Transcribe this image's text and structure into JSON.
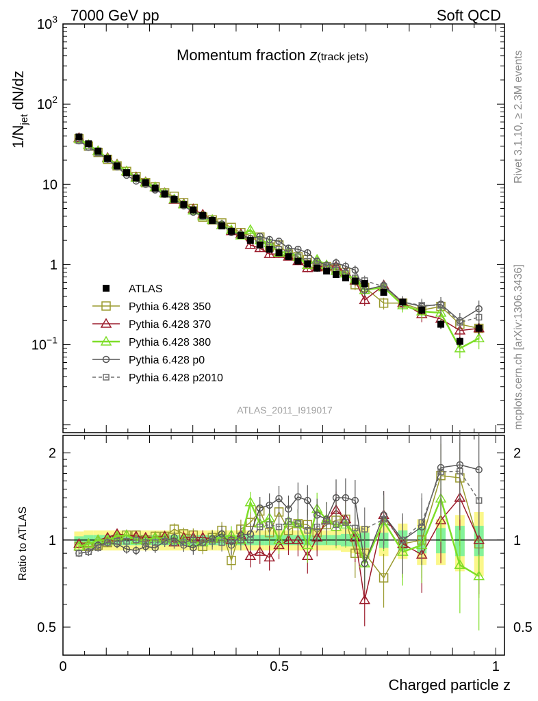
{
  "header": {
    "left": "7000 GeV pp",
    "right": "Soft QCD"
  },
  "side": {
    "rivet": "Rivet 3.1.10, ≥ 2.3M events",
    "mcplots": "mcplots.cern.ch [arXiv:1306.3436]"
  },
  "plot_title": {
    "main": "Momentum fraction ",
    "z": "z",
    "sub": "(track jets)"
  },
  "analysis_tag": "ATLAS_2011_I919017",
  "ylabel_main": {
    "p1": "1/N",
    "s1": "jet",
    "p2": " dN/dz"
  },
  "ylabel_ratio": "Ratio to ATLAS",
  "xlabel": "Charged particle z",
  "colors": {
    "data": "#000000",
    "p350": "#9a9a2e",
    "p370": "#9b1b2b",
    "p380": "#7ede28",
    "p0": "#555555",
    "p2010": "#6e6e6e",
    "band_inner": "#84f29a",
    "band_outer": "#fbf78a"
  },
  "chart_data": [
    {
      "type": "line",
      "panel": "main",
      "yscale": "log",
      "xlim": [
        0,
        1.02
      ],
      "ylim": [
        0.008,
        1000
      ],
      "x_ticklabels": [],
      "y_ticks": [
        {
          "v": 0.1,
          "base": "10",
          "exp": "−1"
        },
        {
          "v": 1,
          "base": "1",
          "exp": ""
        },
        {
          "v": 10,
          "base": "10",
          "exp": ""
        },
        {
          "v": 100,
          "base": "10",
          "exp": "2"
        },
        {
          "v": 1000,
          "base": "10",
          "exp": "3"
        }
      ],
      "x": [
        0.037,
        0.059,
        0.081,
        0.103,
        0.125,
        0.147,
        0.169,
        0.191,
        0.213,
        0.235,
        0.257,
        0.279,
        0.301,
        0.323,
        0.345,
        0.367,
        0.389,
        0.411,
        0.433,
        0.455,
        0.477,
        0.499,
        0.521,
        0.543,
        0.565,
        0.587,
        0.609,
        0.631,
        0.653,
        0.675,
        0.697,
        0.719,
        0.741,
        0.763,
        0.785,
        0.807,
        0.829,
        0.851,
        0.873,
        0.895,
        0.917,
        0.939,
        0.961
      ],
      "legend": {
        "position": "left-center",
        "entries": [
          {
            "key": "data",
            "label": "ATLAS"
          },
          {
            "key": "p350",
            "label": "Pythia 6.428 350"
          },
          {
            "key": "p370",
            "label": "Pythia 6.428 370"
          },
          {
            "key": "p380",
            "label": "Pythia 6.428 380"
          },
          {
            "key": "p0",
            "label": "Pythia 6.428 p0"
          },
          {
            "key": "p2010",
            "label": "Pythia 6.428 p2010"
          }
        ]
      },
      "series": [
        {
          "key": "data",
          "marker": "square-filled",
          "x": [
            0.037,
            0.059,
            0.081,
            0.103,
            0.125,
            0.147,
            0.169,
            0.191,
            0.213,
            0.235,
            0.257,
            0.279,
            0.301,
            0.323,
            0.345,
            0.367,
            0.389,
            0.411,
            0.433,
            0.455,
            0.477,
            0.499,
            0.521,
            0.543,
            0.565,
            0.587,
            0.609,
            0.631,
            0.653,
            0.675,
            0.697,
            0.741,
            0.785,
            0.829,
            0.873,
            0.917,
            0.961
          ],
          "y": [
            39,
            32,
            26,
            21,
            17,
            14,
            12,
            10.5,
            9,
            7.6,
            6.5,
            5.6,
            4.8,
            4.1,
            3.55,
            3.05,
            2.6,
            2.3,
            2.0,
            1.75,
            1.55,
            1.4,
            1.25,
            1.1,
            1.02,
            0.9,
            0.83,
            0.75,
            0.68,
            0.62,
            0.58,
            0.45,
            0.34,
            0.27,
            0.18,
            0.11,
            0.16
          ]
        },
        {
          "key": "p350",
          "marker": "square-open",
          "x": [
            0.037,
            0.059,
            0.081,
            0.103,
            0.125,
            0.147,
            0.169,
            0.191,
            0.213,
            0.235,
            0.257,
            0.279,
            0.301,
            0.323,
            0.345,
            0.367,
            0.389,
            0.411,
            0.433,
            0.455,
            0.477,
            0.499,
            0.521,
            0.543,
            0.565,
            0.587,
            0.609,
            0.631,
            0.653,
            0.675,
            0.697,
            0.741,
            0.785,
            0.829,
            0.873,
            0.917,
            0.961
          ],
          "y": [
            37,
            30,
            25,
            20.5,
            17,
            14.5,
            12.5,
            10.5,
            9.3,
            7.8,
            7.1,
            5.9,
            5.0,
            3.9,
            3.6,
            3.3,
            2.9,
            2.5,
            2.3,
            2.2,
            1.65,
            1.75,
            1.35,
            1.25,
            1.15,
            0.95,
            0.94,
            0.88,
            0.8,
            0.56,
            0.52,
            0.33,
            0.33,
            0.27,
            0.3,
            0.18,
            0.16
          ]
        },
        {
          "key": "p370",
          "marker": "triangle-open",
          "x": [
            0.037,
            0.059,
            0.081,
            0.103,
            0.125,
            0.147,
            0.169,
            0.191,
            0.213,
            0.235,
            0.257,
            0.279,
            0.301,
            0.323,
            0.345,
            0.367,
            0.389,
            0.411,
            0.433,
            0.455,
            0.477,
            0.499,
            0.521,
            0.543,
            0.565,
            0.587,
            0.609,
            0.631,
            0.653,
            0.675,
            0.697,
            0.741,
            0.785,
            0.829,
            0.873,
            0.917,
            0.961
          ],
          "y": [
            38,
            31,
            26,
            21.5,
            17.8,
            14.5,
            12.3,
            10.7,
            9.2,
            7.8,
            6.4,
            5.7,
            4.9,
            4.2,
            3.6,
            3.1,
            2.6,
            2.4,
            1.75,
            1.6,
            1.35,
            1.35,
            1.25,
            1.1,
            0.9,
            0.92,
            0.97,
            0.95,
            0.8,
            0.63,
            0.36,
            0.55,
            0.33,
            0.24,
            0.21,
            0.15,
            0.16
          ]
        },
        {
          "key": "p380",
          "marker": "triangle-open",
          "x": [
            0.037,
            0.059,
            0.081,
            0.103,
            0.125,
            0.147,
            0.169,
            0.191,
            0.213,
            0.235,
            0.257,
            0.279,
            0.301,
            0.323,
            0.345,
            0.367,
            0.389,
            0.411,
            0.433,
            0.455,
            0.477,
            0.499,
            0.521,
            0.543,
            0.565,
            0.587,
            0.609,
            0.631,
            0.653,
            0.675,
            0.697,
            0.741,
            0.785,
            0.829,
            0.873,
            0.917,
            0.961
          ],
          "y": [
            37,
            31,
            26,
            21,
            17.5,
            14.5,
            12,
            10.5,
            9.2,
            7.7,
            6.5,
            5.6,
            4.7,
            4.0,
            3.6,
            3.1,
            2.7,
            2.3,
            2.7,
            2.0,
            1.85,
            1.4,
            1.45,
            1.25,
            0.98,
            1.15,
            0.98,
            0.83,
            0.77,
            0.65,
            0.48,
            0.52,
            0.31,
            0.26,
            0.25,
            0.09,
            0.12
          ]
        },
        {
          "key": "p0",
          "marker": "circle-open",
          "x": [
            0.037,
            0.059,
            0.081,
            0.103,
            0.125,
            0.147,
            0.169,
            0.191,
            0.213,
            0.235,
            0.257,
            0.279,
            0.301,
            0.323,
            0.345,
            0.367,
            0.389,
            0.411,
            0.433,
            0.455,
            0.477,
            0.499,
            0.521,
            0.543,
            0.565,
            0.587,
            0.609,
            0.631,
            0.653,
            0.675,
            0.697,
            0.741,
            0.785,
            0.829,
            0.873,
            0.917,
            0.961
          ],
          "y": [
            35,
            29,
            25,
            20.5,
            16.5,
            13,
            11,
            10,
            8.5,
            7.5,
            6.6,
            5.4,
            4.5,
            4.0,
            3.6,
            3.2,
            2.5,
            2.4,
            2.1,
            2.25,
            2.05,
            1.95,
            1.6,
            1.55,
            1.4,
            1.1,
            0.98,
            1.05,
            0.95,
            0.85,
            0.48,
            0.55,
            0.34,
            0.3,
            0.32,
            0.2,
            0.28
          ]
        },
        {
          "key": "p2010",
          "marker": "square-open-small",
          "x": [
            0.037,
            0.059,
            0.081,
            0.103,
            0.125,
            0.147,
            0.169,
            0.191,
            0.213,
            0.235,
            0.257,
            0.279,
            0.301,
            0.323,
            0.345,
            0.367,
            0.389,
            0.411,
            0.433,
            0.455,
            0.477,
            0.499,
            0.521,
            0.543,
            0.565,
            0.587,
            0.609,
            0.631,
            0.653,
            0.675,
            0.697,
            0.741,
            0.785,
            0.829,
            0.873,
            0.917,
            0.961
          ],
          "y": [
            35,
            29,
            24.5,
            20.5,
            16.8,
            13.8,
            12,
            10.3,
            8.8,
            7.5,
            6.4,
            5.5,
            4.8,
            4.0,
            3.5,
            3.0,
            2.6,
            2.3,
            2.0,
            1.95,
            1.75,
            1.55,
            1.45,
            1.25,
            1.1,
            1.0,
            0.96,
            0.85,
            0.78,
            0.68,
            0.63,
            0.53,
            0.34,
            0.31,
            0.31,
            0.19,
            0.22
          ]
        }
      ]
    },
    {
      "type": "line",
      "panel": "ratio",
      "ylabel": "Ratio to ATLAS",
      "xlabel": "Charged particle z",
      "xlim": [
        0,
        1.02
      ],
      "ylim": [
        0.4,
        2.3
      ],
      "x_ticklabels": [
        "0",
        "0.5",
        "1"
      ],
      "y_ticklabels": [
        "0.5",
        "1",
        "2"
      ],
      "band_inner": [
        0.03,
        0.04,
        0.04,
        0.04,
        0.04,
        0.04,
        0.04,
        0.04,
        0.04,
        0.04,
        0.04,
        0.04,
        0.04,
        0.04,
        0.04,
        0.04,
        0.04,
        0.04,
        0.04,
        0.04,
        0.04,
        0.04,
        0.04,
        0.04,
        0.04,
        0.04,
        0.04,
        0.04,
        0.05,
        0.05,
        0.06,
        0.06,
        0.08,
        0.1,
        0.1,
        0.12,
        0.12
      ],
      "band_outer": [
        0.07,
        0.08,
        0.08,
        0.08,
        0.08,
        0.08,
        0.08,
        0.08,
        0.08,
        0.08,
        0.08,
        0.08,
        0.08,
        0.08,
        0.08,
        0.08,
        0.08,
        0.08,
        0.08,
        0.08,
        0.08,
        0.08,
        0.08,
        0.08,
        0.08,
        0.08,
        0.08,
        0.08,
        0.09,
        0.1,
        0.12,
        0.12,
        0.14,
        0.18,
        0.18,
        0.22,
        0.25
      ],
      "series": [
        {
          "key": "p350",
          "y": [
            0.95,
            0.95,
            0.96,
            0.98,
            1.0,
            1.04,
            1.04,
            1.0,
            1.03,
            1.03,
            1.09,
            1.05,
            1.04,
            0.95,
            1.02,
            1.08,
            0.85,
            1.09,
            1.15,
            1.26,
            1.06,
            1.25,
            1.08,
            1.14,
            1.13,
            1.06,
            1.13,
            1.17,
            1.18,
            0.9,
            0.9,
            0.74,
            0.97,
            1.0,
            1.67,
            1.64,
            0.97
          ]
        },
        {
          "key": "p370",
          "y": [
            0.97,
            0.97,
            1.0,
            1.02,
            1.05,
            1.04,
            1.03,
            1.02,
            1.02,
            1.03,
            0.98,
            1.02,
            1.02,
            1.02,
            1.01,
            1.02,
            1.0,
            1.04,
            0.88,
            0.91,
            0.87,
            0.96,
            1.0,
            1.0,
            0.88,
            1.02,
            1.17,
            1.27,
            1.18,
            1.02,
            0.62,
            1.22,
            0.97,
            0.89,
            1.17,
            1.4,
            1.0
          ]
        },
        {
          "key": "p380",
          "y": [
            0.95,
            0.97,
            1.0,
            1.0,
            1.03,
            1.04,
            1.0,
            1.0,
            1.02,
            1.01,
            1.0,
            1.0,
            0.98,
            0.98,
            1.01,
            1.02,
            1.04,
            1.0,
            1.35,
            1.14,
            1.19,
            1.0,
            1.16,
            1.14,
            0.96,
            1.28,
            1.18,
            1.11,
            1.13,
            1.05,
            0.83,
            1.16,
            0.91,
            0.96,
            1.39,
            0.82,
            0.75
          ]
        },
        {
          "key": "p0",
          "y": [
            0.9,
            0.91,
            0.96,
            0.98,
            0.97,
            0.93,
            0.92,
            0.95,
            0.94,
            0.99,
            1.02,
            0.96,
            0.94,
            0.98,
            1.01,
            1.05,
            0.96,
            1.04,
            1.05,
            1.29,
            1.32,
            1.39,
            1.28,
            1.41,
            1.37,
            1.22,
            1.18,
            1.4,
            1.4,
            1.37,
            0.83,
            1.22,
            1.0,
            1.11,
            1.78,
            1.82,
            1.75
          ]
        },
        {
          "key": "p2010",
          "y": [
            0.9,
            0.91,
            0.94,
            0.98,
            0.99,
            0.99,
            1.0,
            0.98,
            0.98,
            0.99,
            0.98,
            0.98,
            1.0,
            0.98,
            0.99,
            0.98,
            1.0,
            1.0,
            1.0,
            1.11,
            1.13,
            1.11,
            1.16,
            1.14,
            1.08,
            1.11,
            1.16,
            1.13,
            1.15,
            1.1,
            1.09,
            1.18,
            1.0,
            1.15,
            1.72,
            1.73,
            1.37
          ]
        }
      ]
    }
  ]
}
